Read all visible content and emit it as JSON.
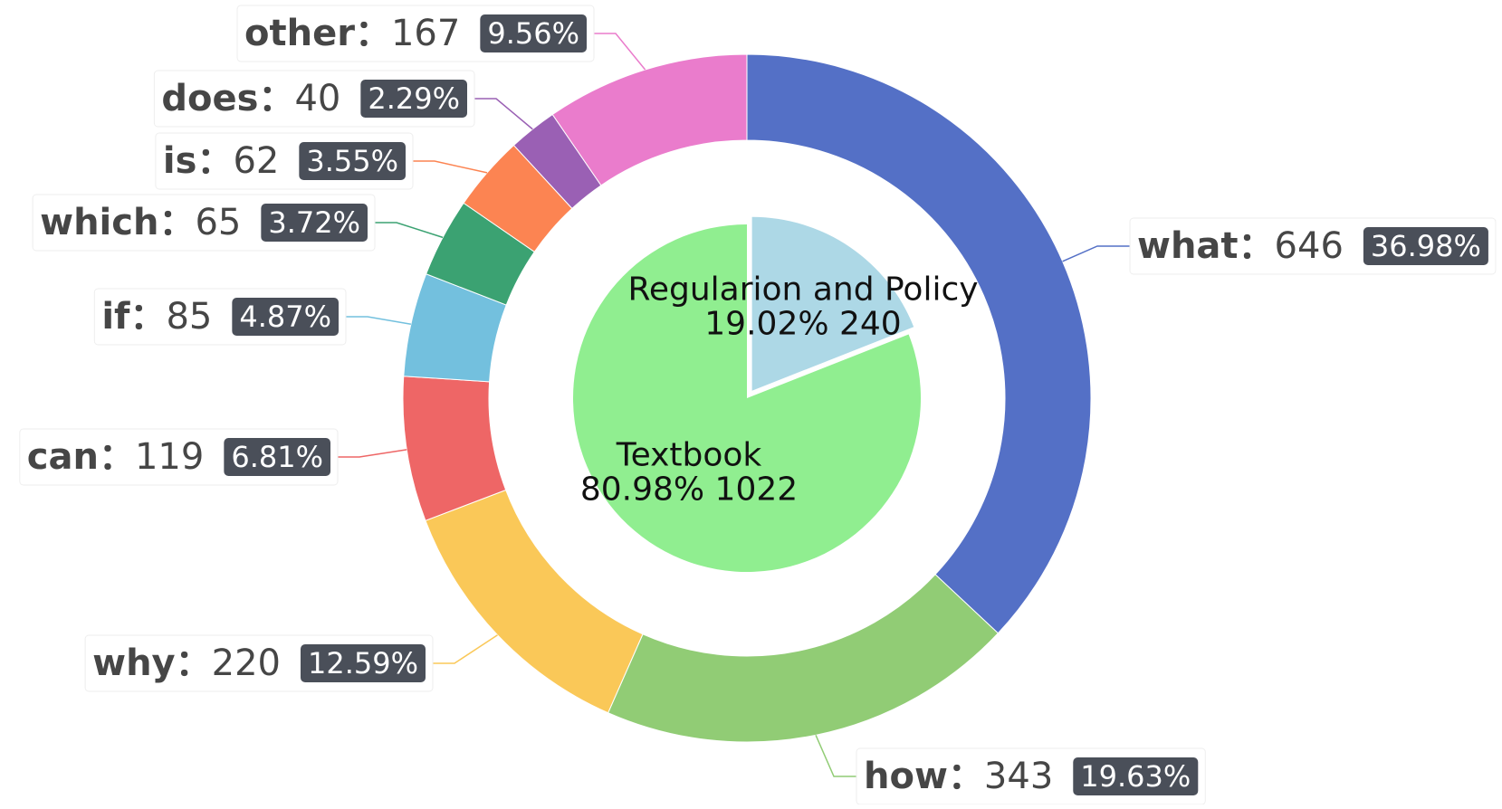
{
  "chart_data": [
    {
      "type": "pie",
      "role": "inner",
      "slices": [
        {
          "name": "Regularion and Policy",
          "value": 240,
          "percent": "19.02%",
          "color": "#add8e6"
        },
        {
          "name": "Textbook",
          "value": 1022,
          "percent": "80.98%",
          "color": "#90ee90"
        }
      ]
    },
    {
      "type": "pie",
      "role": "outer-donut",
      "slices": [
        {
          "name": "what",
          "value": 646,
          "percent": "36.98%",
          "color": "#5470c6"
        },
        {
          "name": "how",
          "value": 343,
          "percent": "19.63%",
          "color": "#91cc75"
        },
        {
          "name": "why",
          "value": 220,
          "percent": "12.59%",
          "color": "#fac858"
        },
        {
          "name": "can",
          "value": 119,
          "percent": "6.81%",
          "color": "#ee6666"
        },
        {
          "name": "if",
          "value": 85,
          "percent": "4.87%",
          "color": "#73c0de"
        },
        {
          "name": "which",
          "value": 65,
          "percent": "3.72%",
          "color": "#3ba272"
        },
        {
          "name": "is",
          "value": 62,
          "percent": "3.55%",
          "color": "#fc8452"
        },
        {
          "name": "does",
          "value": 40,
          "percent": "2.29%",
          "color": "#9a60b4"
        },
        {
          "name": "other",
          "value": 167,
          "percent": "9.56%",
          "color": "#ea7ccc"
        }
      ]
    }
  ]
}
